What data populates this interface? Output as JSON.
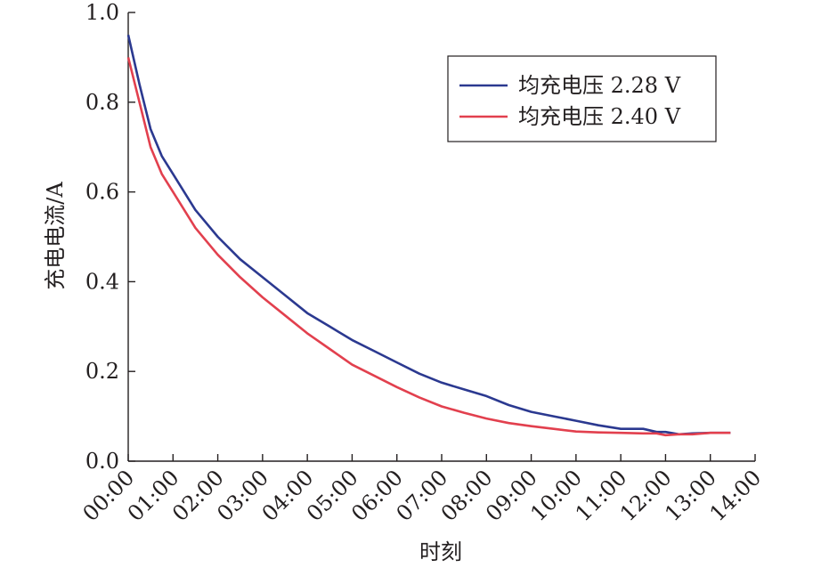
{
  "chart_data": {
    "type": "line",
    "title": "",
    "xlabel": "时刻",
    "ylabel": "充电电流/A",
    "x_ticks": [
      "00:00",
      "01:00",
      "02:00",
      "03:00",
      "04:00",
      "05:00",
      "06:00",
      "07:00",
      "08:00",
      "09:00",
      "10:00",
      "11:00",
      "12:00",
      "13:00",
      "14:00"
    ],
    "xlim": [
      0,
      14
    ],
    "y_ticks": [
      "0.0",
      "0.2",
      "0.4",
      "0.6",
      "0.8",
      "1.0"
    ],
    "ylim": [
      0,
      1.0
    ],
    "grid": false,
    "legend": "top-right",
    "series": [
      {
        "name": "均充电压 2.28 V",
        "color": "#2b3990",
        "x": [
          0,
          0.25,
          0.5,
          0.75,
          1,
          1.5,
          2,
          2.5,
          3,
          3.5,
          4,
          4.5,
          5,
          5.5,
          6,
          6.5,
          7,
          7.5,
          8,
          8.5,
          9,
          9.5,
          10,
          10.5,
          11,
          11.5,
          11.8,
          12,
          12.3,
          12.6,
          13,
          13.45
        ],
        "y": [
          0.95,
          0.84,
          0.74,
          0.68,
          0.64,
          0.56,
          0.5,
          0.45,
          0.41,
          0.37,
          0.33,
          0.3,
          0.27,
          0.245,
          0.22,
          0.195,
          0.175,
          0.16,
          0.145,
          0.125,
          0.11,
          0.1,
          0.09,
          0.08,
          0.072,
          0.072,
          0.065,
          0.065,
          0.06,
          0.062,
          0.063,
          0.063
        ]
      },
      {
        "name": "均充电压 2.40 V",
        "color": "#e2404e",
        "x": [
          0,
          0.25,
          0.5,
          0.75,
          1,
          1.5,
          2,
          2.5,
          3,
          3.5,
          4,
          4.5,
          5,
          5.5,
          6,
          6.5,
          7,
          7.5,
          8,
          8.5,
          9,
          9.5,
          10,
          10.5,
          11,
          11.5,
          11.8,
          12,
          12.3,
          12.6,
          13,
          13.45
        ],
        "y": [
          0.9,
          0.8,
          0.7,
          0.64,
          0.6,
          0.52,
          0.46,
          0.41,
          0.365,
          0.325,
          0.285,
          0.25,
          0.215,
          0.19,
          0.165,
          0.142,
          0.122,
          0.108,
          0.095,
          0.085,
          0.078,
          0.072,
          0.066,
          0.064,
          0.063,
          0.062,
          0.062,
          0.058,
          0.06,
          0.06,
          0.063,
          0.063
        ]
      }
    ]
  }
}
